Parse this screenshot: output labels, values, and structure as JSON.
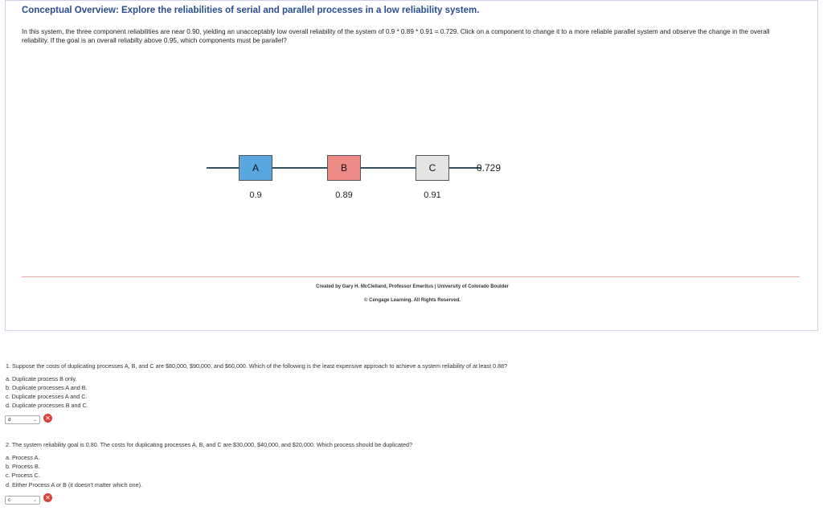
{
  "header": {
    "title": "Conceptual Overview: Explore the reliabilities of serial and parallel processes in a low reliability system.",
    "intro": "In this system, the three component reliabilities are near 0.90, yielding an unacceptably low overall reliability of the system of 0.9 * 0.89 * 0.91 = 0.729. Click on a component to change it to a more reliable parallel system and observe the change in the overall reliability. If the goal is an overall reliabilty above 0.95, which components must be parallel?"
  },
  "diagram": {
    "components": [
      {
        "label": "A",
        "reliability": "0.9",
        "color": "#5aa7e0"
      },
      {
        "label": "B",
        "reliability": "0.89",
        "color": "#ee8b86"
      },
      {
        "label": "C",
        "reliability": "0.91",
        "color": "#e4e4e4"
      }
    ],
    "overall": "0.729"
  },
  "credits": {
    "line1": "Created by Gary H. McClelland, Professor Emeritus | University of Colorado Boulder",
    "line2": "© Cengage Learning. All Rights Reserved."
  },
  "questions": [
    {
      "text": "1.  Suppose the costs of duplicating processes A, B, and C are $80,000, $90,000, and $60,000. Which of the following is the least expensive approach to achieve a system reliability of at least 0.88?",
      "options": [
        "a. Duplicate process B only.",
        "b. Duplicate processes A and B.",
        "c. Duplicate processes A and C.",
        "d. Duplicate processes B and C."
      ],
      "selected": "d",
      "status": "incorrect"
    },
    {
      "text": "2.  The system reliability goal is 0.80. The costs for duplicating processes A, B, and C are $30,000, $40,000, and $20,000. Which process should be duplicated?",
      "options": [
        "a. Process A.",
        "b. Process B.",
        "c. Process C.",
        "d. Either Process A or B (it doesn't matter which one)."
      ],
      "selected": "c",
      "status": "incorrect"
    }
  ]
}
